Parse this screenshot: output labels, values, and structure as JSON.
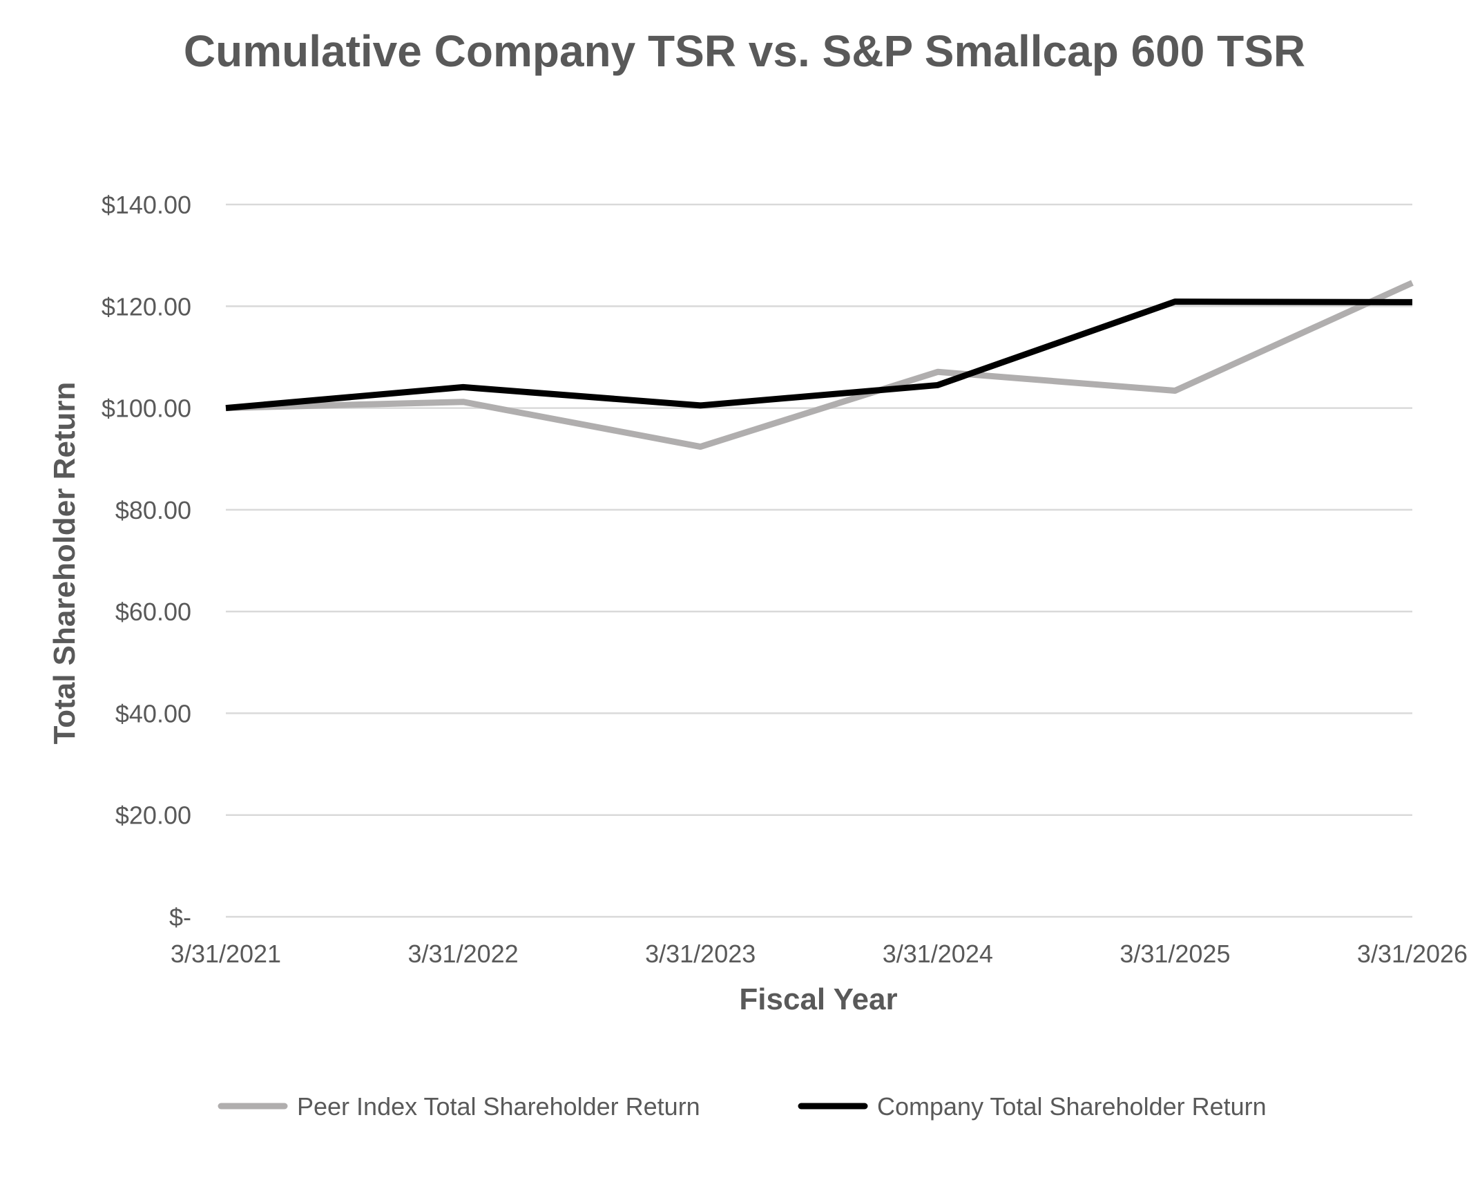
{
  "chart_data": {
    "type": "line",
    "title": "Cumulative Company TSR vs. S&P Smallcap 600 TSR",
    "xlabel": "Fiscal Year",
    "ylabel": "Total Shareholder Return",
    "categories": [
      "3/31/2021",
      "3/31/2022",
      "3/31/2023",
      "3/31/2024",
      "3/31/2025",
      "3/31/2026"
    ],
    "y_ticks": [
      0,
      20,
      40,
      60,
      80,
      100,
      120,
      140
    ],
    "y_tick_labels": [
      "$-",
      "$20.00",
      "$40.00",
      "$60.00",
      "$80.00",
      "$100.00",
      "$120.00",
      "$140.00"
    ],
    "ylim": [
      0,
      140
    ],
    "grid": true,
    "legend_position": "bottom",
    "series": [
      {
        "name": "Peer Index Total Shareholder Return",
        "color": "#b0aeae",
        "values": [
          100.0,
          101.2,
          92.4,
          107.1,
          103.4,
          124.6
        ]
      },
      {
        "name": "Company Total Shareholder Return",
        "color": "#000000",
        "values": [
          100.0,
          104.1,
          100.5,
          104.5,
          120.9,
          120.8
        ]
      }
    ]
  }
}
